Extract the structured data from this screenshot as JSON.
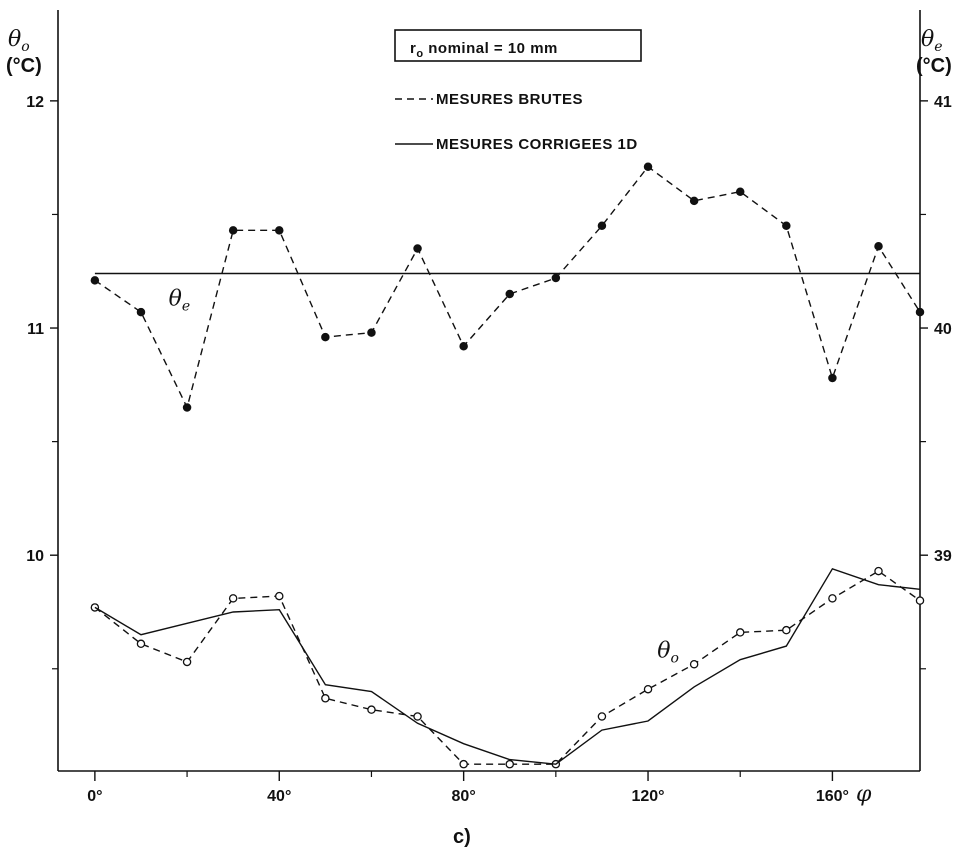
{
  "chart_data": {
    "type": "line",
    "x_tick_labels": [
      "0°",
      "40°",
      "80°",
      "120°",
      "160°"
    ],
    "x_ticks": [
      0,
      40,
      80,
      120,
      160
    ],
    "xlim": [
      -8,
      179
    ],
    "x_axis_symbol": "φ",
    "y_left": {
      "label_symbol": "θo",
      "unit": "(°C)",
      "ylim": [
        9.05,
        12.4
      ],
      "ticks": [
        10,
        11,
        12
      ],
      "tick_labels": [
        "10",
        "11",
        "12"
      ]
    },
    "y_right": {
      "label_symbol": "θe",
      "unit": "(°C)",
      "ticks": [
        39,
        40,
        41
      ],
      "tick_labels": [
        "39",
        "40",
        "41"
      ]
    },
    "box_label": "ro nominal = 10 mm",
    "legend": [
      {
        "label": "MESURES BRUTES",
        "style": "dashed"
      },
      {
        "label": "MESURES CORRIGEES 1D",
        "style": "solid"
      }
    ],
    "series": [
      {
        "label": "θe",
        "style": "dashed",
        "marker": "filled",
        "x": [
          0,
          10,
          20,
          30,
          40,
          50,
          60,
          70,
          80,
          90,
          100,
          110,
          120,
          130,
          140,
          150,
          160,
          170,
          179
        ],
        "y": [
          11.21,
          11.07,
          10.65,
          11.43,
          11.43,
          10.96,
          10.98,
          11.35,
          10.92,
          11.15,
          11.22,
          11.45,
          11.71,
          11.56,
          11.6,
          11.45,
          10.78,
          11.36,
          11.07
        ]
      },
      {
        "label": "θe",
        "style": "solid",
        "x": [
          0,
          179
        ],
        "y": [
          11.24,
          11.24
        ]
      },
      {
        "label": "θo",
        "style": "dashed",
        "marker": "open",
        "x": [
          0,
          10,
          20,
          30,
          40,
          50,
          60,
          70,
          80,
          90,
          100,
          110,
          120,
          130,
          140,
          150,
          160,
          170,
          179
        ],
        "y": [
          9.77,
          9.61,
          9.53,
          9.81,
          9.82,
          9.37,
          9.32,
          9.29,
          9.08,
          9.08,
          9.08,
          9.29,
          9.41,
          9.52,
          9.66,
          9.67,
          9.81,
          9.93,
          9.8
        ]
      },
      {
        "label": "",
        "style": "solid",
        "x": [
          0,
          10,
          20,
          30,
          40,
          50,
          60,
          70,
          80,
          90,
          100,
          110,
          120,
          130,
          140,
          150,
          160,
          170,
          179
        ],
        "y": [
          9.77,
          9.65,
          9.7,
          9.75,
          9.76,
          9.43,
          9.4,
          9.26,
          9.17,
          9.1,
          9.08,
          9.23,
          9.27,
          9.42,
          9.54,
          9.6,
          9.94,
          9.87,
          9.85
        ]
      }
    ],
    "curve_labels": [
      {
        "symbol": "θe",
        "near_x": 16,
        "near_y": 11.1
      },
      {
        "symbol": "θo",
        "near_x": 122,
        "near_y": 9.55
      }
    ],
    "subplot_label": "c)",
    "grid": false
  }
}
